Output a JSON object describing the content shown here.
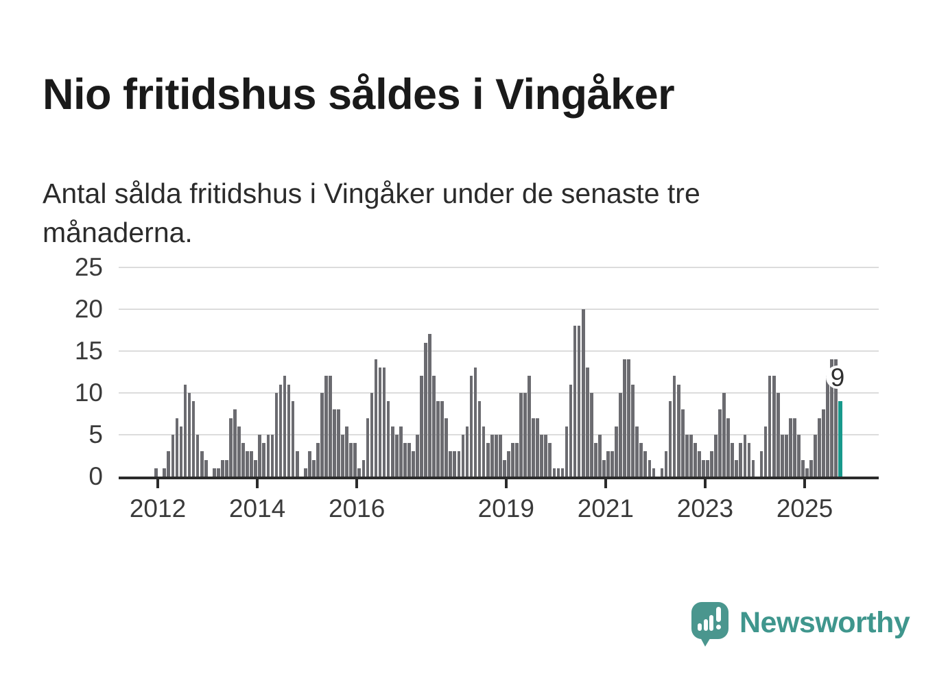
{
  "title": "Nio fritidshus såldes i Vingåker",
  "subtitle": "Antal sålda fritidshus i Vingåker under de senaste tre månaderna.",
  "chart_data": {
    "type": "bar",
    "x_start": "2012-01",
    "x_end": "2025-10",
    "x_unit": "month",
    "ylim": [
      0,
      25
    ],
    "yticks": [
      0,
      5,
      10,
      15,
      20,
      25
    ],
    "xtick_years": [
      2012,
      2014,
      2016,
      2019,
      2021,
      2023,
      2025
    ],
    "grid": true,
    "legend": "none",
    "bar_color": "#6b6b70",
    "highlight_color": "#18998c",
    "highlight_label": "9",
    "values_by_year": {
      "2012": [
        1,
        0,
        1,
        3,
        5,
        7,
        6,
        11,
        10,
        9,
        5,
        3
      ],
      "2013": [
        2,
        0,
        1,
        1,
        2,
        2,
        7,
        8,
        6,
        4,
        3,
        3
      ],
      "2014": [
        2,
        5,
        4,
        5,
        5,
        10,
        11,
        12,
        11,
        9,
        3,
        0
      ],
      "2015": [
        1,
        3,
        2,
        4,
        10,
        12,
        12,
        8,
        8,
        5,
        6,
        4
      ],
      "2016": [
        4,
        1,
        2,
        7,
        10,
        14,
        13,
        13,
        9,
        6,
        5,
        6
      ],
      "2017": [
        4,
        4,
        3,
        5,
        12,
        16,
        17,
        12,
        9,
        9,
        7,
        3
      ],
      "2018": [
        3,
        3,
        5,
        6,
        12,
        13,
        9,
        6,
        4,
        5,
        5,
        5
      ],
      "2019": [
        2,
        3,
        4,
        4,
        10,
        10,
        12,
        7,
        7,
        5,
        5,
        4
      ],
      "2020": [
        1,
        1,
        1,
        6,
        11,
        18,
        18,
        20,
        13,
        10,
        4,
        5
      ],
      "2021": [
        2,
        3,
        3,
        6,
        10,
        14,
        14,
        11,
        6,
        4,
        3,
        2
      ],
      "2022": [
        1,
        0,
        1,
        3,
        9,
        12,
        11,
        8,
        5,
        5,
        4,
        3
      ],
      "2023": [
        2,
        2,
        3,
        5,
        8,
        10,
        7,
        4,
        2,
        4,
        5,
        4
      ],
      "2024": [
        2,
        0,
        3,
        6,
        12,
        12,
        10,
        5,
        5,
        7,
        7,
        5
      ],
      "2025": [
        2,
        1,
        2,
        5,
        7,
        8,
        12,
        14,
        14,
        9
      ]
    }
  },
  "logo": {
    "text": "Newsworthy",
    "icon": "bar-chart-speech-bubble",
    "text_color": "#3f968d",
    "bubble_color": "#4a968e"
  },
  "colors": {
    "background": "#ffffff",
    "title": "#1a1a1a",
    "subtitle": "#2b2b2b",
    "axis": "#2b2b2b",
    "gridline": "#dcdcdc",
    "tick_label": "#3a3a3a",
    "bar": "#6b6b70",
    "highlight_bar": "#18998c"
  }
}
